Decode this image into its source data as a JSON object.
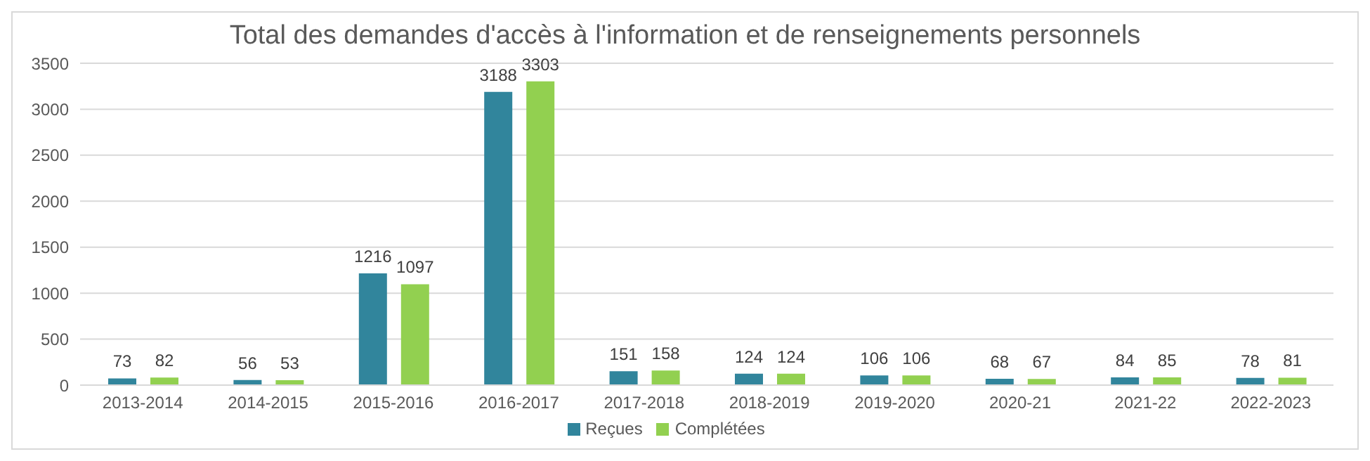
{
  "chart_data": {
    "type": "bar",
    "title": "Total des demandes d'accès à l'information et de renseignements personnels",
    "categories": [
      "2013-2014",
      "2014-2015",
      "2015-2016",
      "2016-2017",
      "2017-2018",
      "2018-2019",
      "2019-2020",
      "2020-21",
      "2021-22",
      "2022-2023"
    ],
    "series": [
      {
        "name": "Reçues",
        "color": "#31859c",
        "values": [
          73,
          56,
          1216,
          3188,
          151,
          124,
          106,
          68,
          84,
          78
        ]
      },
      {
        "name": "Complétées",
        "color": "#92d050",
        "values": [
          82,
          53,
          1097,
          3303,
          158,
          124,
          106,
          67,
          85,
          81
        ]
      }
    ],
    "ylim": [
      0,
      3500
    ],
    "yticks": [
      0,
      500,
      1000,
      1500,
      2000,
      2500,
      3000,
      3500
    ],
    "grid": "y",
    "legend": "bottom",
    "data_labels": true
  }
}
